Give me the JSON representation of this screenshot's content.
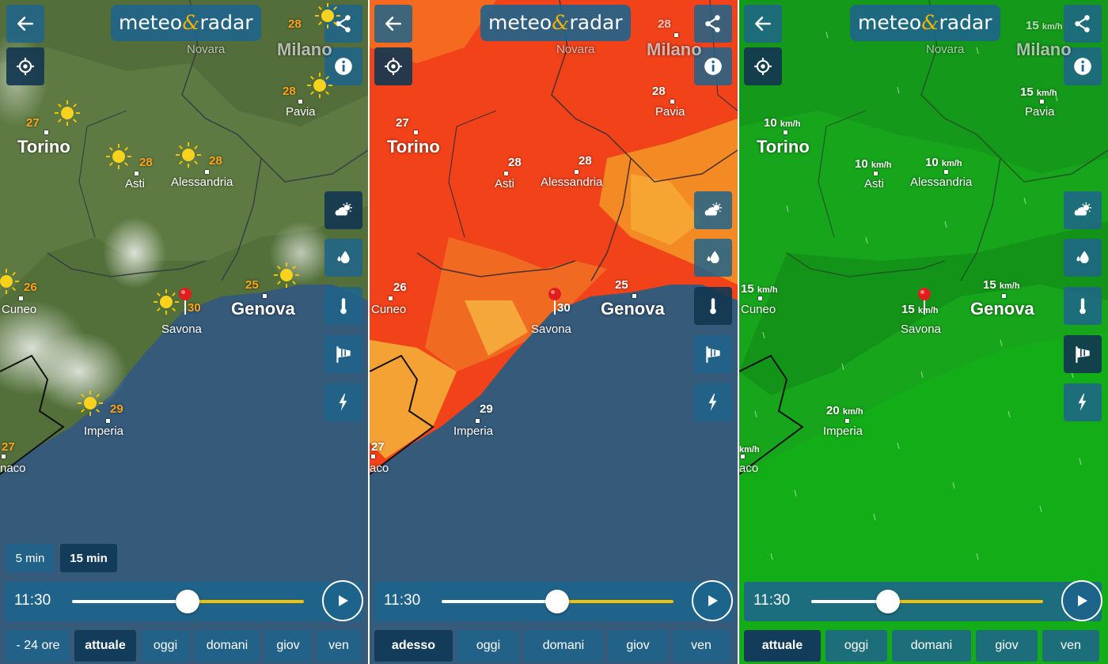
{
  "logo": {
    "text_before": "meteo",
    "amp": "&",
    "text_after": "radar"
  },
  "panels": [
    {
      "layer": "weather",
      "cities": {
        "novara": "Novara",
        "milano": "Milano",
        "pavia": "Pavia",
        "torino": "Torino",
        "asti": "Asti",
        "alessandria": "Alessandria",
        "cuneo": "Cuneo",
        "savona": "Savona",
        "genova": "Genova",
        "imperia": "Imperia",
        "monaco": "naco"
      },
      "values": {
        "milano": "28",
        "pavia": "28",
        "torino": "27",
        "asti": "28",
        "alessandria": "28",
        "cuneo": "26",
        "savona": "30",
        "genova": "25",
        "imperia": "29",
        "monaco": "27"
      },
      "interval": {
        "opt1": "5 min",
        "opt2": "15 min"
      },
      "time": "11:30",
      "days": [
        "- 24 ore",
        "attuale",
        "oggi",
        "domani",
        "giov",
        "ven"
      ],
      "active_day": 1,
      "slider_progress": 0.5
    },
    {
      "layer": "temperature",
      "cities": {
        "novara": "Novara",
        "milano": "Milano",
        "pavia": "Pavia",
        "torino": "Torino",
        "asti": "Asti",
        "alessandria": "Alessandria",
        "cuneo": "Cuneo",
        "savona": "Savona",
        "genova": "Genova",
        "imperia": "Imperia",
        "monaco": "aco"
      },
      "values": {
        "milano": "28",
        "pavia": "28",
        "torino": "27",
        "asti": "28",
        "alessandria": "28",
        "cuneo": "26",
        "savona": "30",
        "genova": "25",
        "imperia": "29",
        "monaco": "27"
      },
      "time": "11:30",
      "days": [
        "adesso",
        "oggi",
        "domani",
        "giov",
        "ven"
      ],
      "active_day": 0,
      "slider_progress": 0.5
    },
    {
      "layer": "wind",
      "cities": {
        "novara": "Novara",
        "milano": "Milano",
        "pavia": "Pavia",
        "torino": "Torino",
        "asti": "Asti",
        "alessandria": "Alessandria",
        "cuneo": "Cuneo",
        "savona": "Savona",
        "genova": "Genova",
        "imperia": "Imperia",
        "monaco": "aco"
      },
      "values": {
        "milano": "15",
        "pavia": "15",
        "torino": "10",
        "asti": "10",
        "alessandria": "10",
        "cuneo": "15",
        "savona": "15",
        "genova": "15",
        "imperia": "20",
        "monaco": ""
      },
      "unit": "km/h",
      "time": "11:30",
      "days": [
        "attuale",
        "oggi",
        "domani",
        "giov",
        "ven"
      ],
      "active_day": 0,
      "slider_progress": 0.33
    }
  ],
  "colors": {
    "accent": "#1e648c",
    "active": "#123c59",
    "slider_yellow": "#f3c200",
    "temp_orange": "#ffa21a",
    "sea": "#355a7a",
    "land_weather": "#5e7a42",
    "land_temp": "#f1421a",
    "land_wind": "#17a51c"
  },
  "icons": {
    "back": "arrow-left-icon",
    "share": "share-icon",
    "locate": "crosshair-icon",
    "info": "info-icon",
    "layer_weather": "cloud-sun-icon",
    "layer_rain": "raindrops-icon",
    "layer_temp": "thermometer-icon",
    "layer_wind": "windsock-icon",
    "layer_lightning": "lightning-icon",
    "play": "play-icon"
  }
}
